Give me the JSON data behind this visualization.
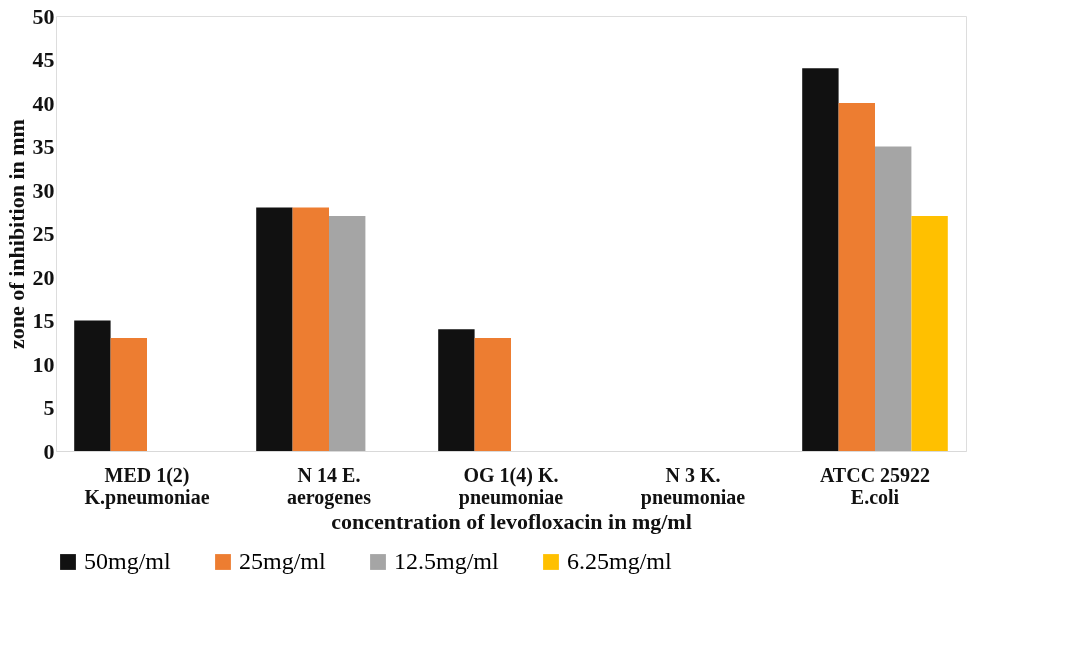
{
  "chart_data": {
    "type": "bar",
    "xlabel": "concentration of levofloxacin in mg/ml",
    "ylabel": "zone of inhibition in mm",
    "categories": [
      "MED 1(2)\nK.pneumoniae",
      "N 14 E.\naerogenes",
      "OG 1(4) K.\npneumoniae",
      "N 3 K.\npneumoniae",
      "ATCC 25922\nE.coli"
    ],
    "series": [
      {
        "name": "50mg/ml",
        "color": "#111111",
        "values": [
          15,
          28,
          14,
          0,
          44
        ]
      },
      {
        "name": "25mg/ml",
        "color": "#ed7d31",
        "values": [
          13,
          28,
          13,
          0,
          40
        ]
      },
      {
        "name": "12.5mg/ml",
        "color": "#a5a5a5",
        "values": [
          0,
          27,
          0,
          0,
          35
        ]
      },
      {
        "name": "6.25mg/ml",
        "color": "#ffc000",
        "values": [
          0,
          0,
          0,
          0,
          27
        ]
      }
    ],
    "ylim": [
      0,
      50
    ],
    "yticks": [
      0,
      5,
      10,
      15,
      20,
      25,
      30,
      35,
      40,
      45,
      50
    ],
    "grid": false,
    "legend": "bottom"
  }
}
